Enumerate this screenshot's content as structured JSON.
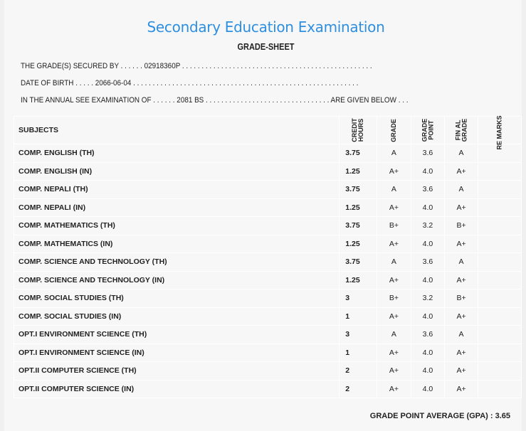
{
  "title": "Secondary Education Examination",
  "subtitle": "GRADE-SHEET",
  "info": {
    "line1": "THE GRADE(S) SECURED BY . . . . . .  02918360P . . . . . . . . . . . . . . . . . . . . . . . . . . . . . . . . . . . . . . . . . . . . . . . . .",
    "line2": "DATE OF BIRTH . . . . .  2066-06-04 . . . . . . . . . . . . . . . . . . . . . . . . . . . . . . . . . . . . . . . . . . . . . . . . . . . . . . . . . .",
    "line3": "IN THE ANNUAL SEE EXAMINATION OF . . . . . .  2081 BS . . . . . . . . . . . . . . . . . . . . . . . . . . . . . . . . ARE GIVEN BELOW . . ."
  },
  "headers": {
    "subjects": "SUBJECTS",
    "credit": "CREDIT\nHOURS",
    "grade": "GRADE",
    "point": "GRADE\nPOINT",
    "final": "FIN AL\nGRADE",
    "remarks": "RE MARKS"
  },
  "rows": [
    {
      "subject": "COMP. ENGLISH (TH)",
      "credit": "3.75",
      "grade": "A",
      "point": "3.6",
      "final": "A"
    },
    {
      "subject": "COMP. ENGLISH (IN)",
      "credit": "1.25",
      "grade": "A+",
      "point": "4.0",
      "final": "A+"
    },
    {
      "subject": "COMP. NEPALI (TH)",
      "credit": "3.75",
      "grade": "A",
      "point": "3.6",
      "final": "A"
    },
    {
      "subject": "COMP. NEPALI (IN)",
      "credit": "1.25",
      "grade": "A+",
      "point": "4.0",
      "final": "A+"
    },
    {
      "subject": "COMP. MATHEMATICS (TH)",
      "credit": "3.75",
      "grade": "B+",
      "point": "3.2",
      "final": "B+"
    },
    {
      "subject": "COMP. MATHEMATICS (IN)",
      "credit": "1.25",
      "grade": "A+",
      "point": "4.0",
      "final": "A+"
    },
    {
      "subject": "COMP. SCIENCE AND TECHNOLOGY (TH)",
      "credit": "3.75",
      "grade": "A",
      "point": "3.6",
      "final": "A"
    },
    {
      "subject": "COMP. SCIENCE AND TECHNOLOGY (IN)",
      "credit": "1.25",
      "grade": "A+",
      "point": "4.0",
      "final": "A+"
    },
    {
      "subject": "COMP. SOCIAL STUDIES (TH)",
      "credit": "3",
      "grade": "B+",
      "point": "3.2",
      "final": "B+"
    },
    {
      "subject": "COMP. SOCIAL STUDIES (IN)",
      "credit": "1",
      "grade": "A+",
      "point": "4.0",
      "final": "A+"
    },
    {
      "subject": "OPT.I ENVIRONMENT SCIENCE (TH)",
      "credit": "3",
      "grade": "A",
      "point": "3.6",
      "final": "A"
    },
    {
      "subject": "OPT.I ENVIRONMENT SCIENCE (IN)",
      "credit": "1",
      "grade": "A+",
      "point": "4.0",
      "final": "A+"
    },
    {
      "subject": "OPT.II COMPUTER SCIENCE (TH)",
      "credit": "2",
      "grade": "A+",
      "point": "4.0",
      "final": "A+"
    },
    {
      "subject": "OPT.II COMPUTER SCIENCE (IN)",
      "credit": "2",
      "grade": "A+",
      "point": "4.0",
      "final": "A+"
    }
  ],
  "gpa": "GRADE POINT AVERAGE (GPA) : 3.65"
}
